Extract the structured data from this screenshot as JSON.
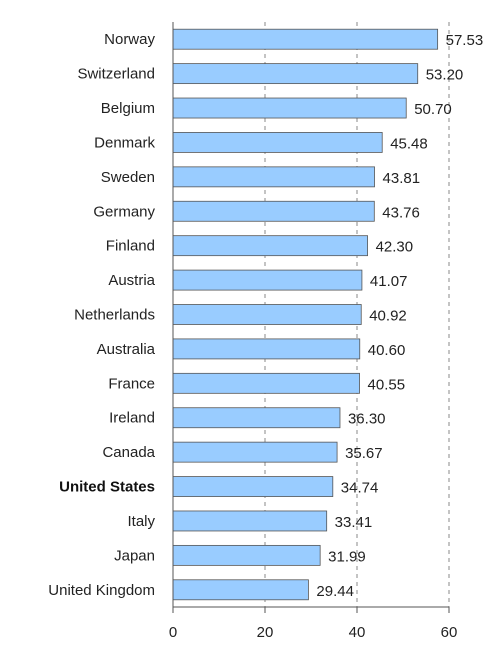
{
  "chart_data": {
    "type": "bar",
    "orientation": "horizontal",
    "categories": [
      "Norway",
      "Switzerland",
      "Belgium",
      "Denmark",
      "Sweden",
      "Germany",
      "Finland",
      "Austria",
      "Netherlands",
      "Australia",
      "France",
      "Ireland",
      "Canada",
      "United States",
      "Italy",
      "Japan",
      "United Kingdom"
    ],
    "values": [
      57.53,
      53.2,
      50.7,
      45.48,
      43.81,
      43.76,
      42.3,
      41.07,
      40.92,
      40.6,
      40.55,
      36.3,
      35.67,
      34.74,
      33.41,
      31.99,
      29.44
    ],
    "value_labels": [
      "57.53",
      "53.20",
      "50.70",
      "45.48",
      "43.81",
      "43.76",
      "42.30",
      "41.07",
      "40.92",
      "40.60",
      "40.55",
      "36.30",
      "35.67",
      "34.74",
      "33.41",
      "31.99",
      "29.44"
    ],
    "highlighted_category": "United States",
    "xticks": [
      "0",
      "20",
      "40",
      "60"
    ],
    "xlim": [
      0,
      60
    ],
    "grid": "vertical-dashed",
    "title": "",
    "xlabel": "",
    "ylabel": "",
    "colors": {
      "bar": "#99CCFF",
      "bar_stroke": "#555555",
      "axis": "#555555",
      "grid": "#888888"
    }
  }
}
